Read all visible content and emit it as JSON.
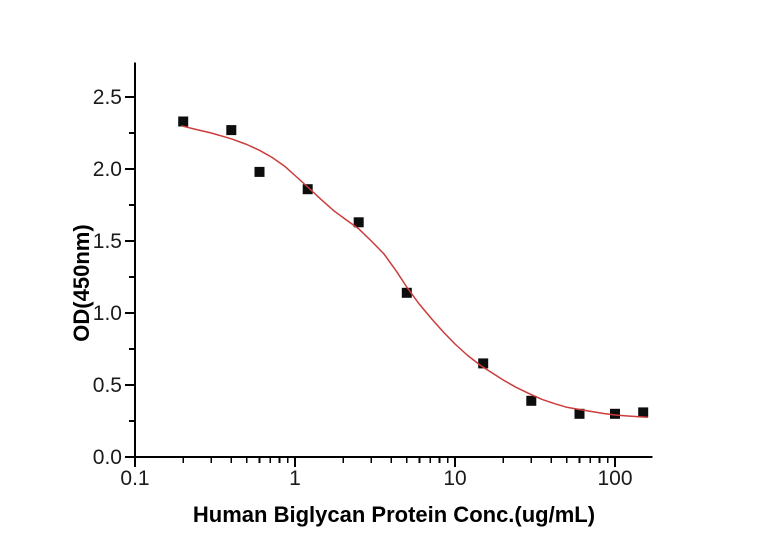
{
  "figure": {
    "background_color": "#ffffff",
    "axis_color": "#000000",
    "tick_label_color": "#1a1a1a",
    "curve_color": "#cc3c3c",
    "marker_color": "#0d0d0d"
  },
  "chart_data": {
    "type": "scatter",
    "title": "",
    "xlabel": "Human Biglycan Protein Conc.(ug/mL)",
    "ylabel": "OD(450nm)",
    "x_scale": "log",
    "y_scale": "linear",
    "xlim": [
      0.1,
      172
    ],
    "ylim": [
      0,
      2.74
    ],
    "x_major_ticks": [
      0.1,
      1,
      10,
      100
    ],
    "x_major_tick_labels": [
      "0.1",
      "1",
      "10",
      "100"
    ],
    "y_major_ticks": [
      0,
      0.5,
      1,
      1.5,
      2,
      2.5
    ],
    "y_major_tick_labels": [
      "0.0",
      "0.5",
      "1.0",
      "1.5",
      "2.0",
      "2.5"
    ],
    "y_minor_ticks": [
      0.25,
      0.75,
      1.25,
      1.75,
      2.25
    ],
    "grid": false,
    "legend": "none",
    "series": [
      {
        "name": "Measured OD data points",
        "render": "scatter",
        "marker": "filled-square",
        "color": "#0d0d0d",
        "points": [
          [
            0.2,
            2.33
          ],
          [
            0.4,
            2.27
          ],
          [
            0.6,
            1.98
          ],
          [
            1.2,
            1.86
          ],
          [
            2.5,
            1.63
          ],
          [
            5,
            1.14
          ],
          [
            15,
            0.65
          ],
          [
            30,
            0.39
          ],
          [
            60,
            0.3
          ],
          [
            100,
            0.3
          ],
          [
            150,
            0.31
          ]
        ]
      },
      {
        "name": "4PL fit curve",
        "render": "line",
        "color": "#cc3c3c",
        "points": [
          [
            0.195,
            2.3
          ],
          [
            0.24,
            2.275
          ],
          [
            0.3,
            2.25
          ],
          [
            0.4,
            2.21
          ],
          [
            0.5,
            2.17
          ],
          [
            0.6,
            2.13
          ],
          [
            0.72,
            2.08
          ],
          [
            0.86,
            2.02
          ],
          [
            1.0,
            1.955
          ],
          [
            1.2,
            1.875
          ],
          [
            1.45,
            1.79
          ],
          [
            1.75,
            1.71
          ],
          [
            2.1,
            1.645
          ],
          [
            2.5,
            1.585
          ],
          [
            3.0,
            1.5
          ],
          [
            3.6,
            1.41
          ],
          [
            4.3,
            1.29
          ],
          [
            5.0,
            1.18
          ],
          [
            6.0,
            1.06
          ],
          [
            7.2,
            0.955
          ],
          [
            8.5,
            0.865
          ],
          [
            10,
            0.785
          ],
          [
            12,
            0.705
          ],
          [
            14.5,
            0.635
          ],
          [
            17,
            0.585
          ],
          [
            20,
            0.535
          ],
          [
            24,
            0.485
          ],
          [
            29,
            0.44
          ],
          [
            35,
            0.4
          ],
          [
            42,
            0.37
          ],
          [
            50,
            0.345
          ],
          [
            60,
            0.33
          ],
          [
            72,
            0.315
          ],
          [
            85,
            0.302
          ],
          [
            100,
            0.292
          ],
          [
            120,
            0.285
          ],
          [
            140,
            0.28
          ],
          [
            160,
            0.276
          ]
        ]
      }
    ]
  }
}
